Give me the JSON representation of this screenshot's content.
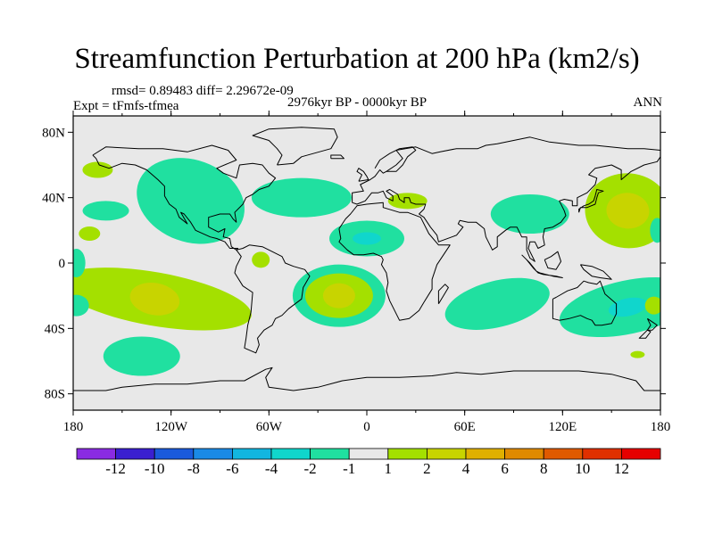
{
  "title": "Streamfunction Perturbation at 200 hPa (km2/s)",
  "stats_line": "rmsd= 0.89483 diff= 2.29672e-09",
  "experiment": "Expt = tFmfs-tfmea",
  "period": "2976kyr BP - 0000kyr BP",
  "season": "ANN",
  "chart_data": {
    "type": "contour-map",
    "projection": "cylindrical equidistant",
    "x_range_deg": [
      -180,
      180
    ],
    "y_range_deg": [
      -90,
      90
    ],
    "x_ticks": [
      "180",
      "120W",
      "60W",
      "0",
      "60E",
      "120E",
      "180"
    ],
    "y_ticks": [
      "80N",
      "40N",
      "0",
      "40S",
      "80S"
    ],
    "colorbar": {
      "labels": [
        "-12",
        "-10",
        "-8",
        "-6",
        "-4",
        "-2",
        "-1",
        "1",
        "2",
        "4",
        "6",
        "8",
        "10",
        "12"
      ],
      "colors": [
        "#8a2be2",
        "#3a1fd0",
        "#1a5adc",
        "#1a8ae6",
        "#12b6e0",
        "#10d6cc",
        "#20e0a0",
        "#e8e8e8",
        "#a4e000",
        "#c8d400",
        "#e0b000",
        "#e08a00",
        "#e05a00",
        "#e03000",
        "#e60000"
      ]
    },
    "features": [
      {
        "name": "north-america-low",
        "lon": -108,
        "lat": 38,
        "value": -1.5
      },
      {
        "name": "north-atlantic-low",
        "lon": -40,
        "lat": 40,
        "value": -1.5
      },
      {
        "name": "west-pacific-low",
        "lon": -160,
        "lat": 32,
        "value": -1.5
      },
      {
        "name": "alaska-high",
        "lon": -165,
        "lat": 57,
        "value": 1.5
      },
      {
        "name": "mediterranean-high",
        "lon": 25,
        "lat": 38,
        "value": 1.5
      },
      {
        "name": "east-asia-high",
        "lon": 160,
        "lat": 32,
        "value": 3
      },
      {
        "name": "asia-low",
        "lon": 100,
        "lat": 30,
        "value": -1.5
      },
      {
        "name": "tropical-atlantic-low",
        "lon": 0,
        "lat": 15,
        "value": -2.5
      },
      {
        "name": "equatorial-america-high",
        "lon": -65,
        "lat": 2,
        "value": 1.5
      },
      {
        "name": "south-pacific-high",
        "lon": -130,
        "lat": -22,
        "value": 3
      },
      {
        "name": "south-atlantic-high",
        "lon": -17,
        "lat": -20,
        "value": 3
      },
      {
        "name": "south-indian-low",
        "lon": 80,
        "lat": -25,
        "value": -1.5
      },
      {
        "name": "australia-low",
        "lon": 160,
        "lat": -27,
        "value": -2.5
      },
      {
        "name": "southern-ocean-low",
        "lon": -138,
        "lat": -57,
        "value": -1.5
      }
    ]
  }
}
